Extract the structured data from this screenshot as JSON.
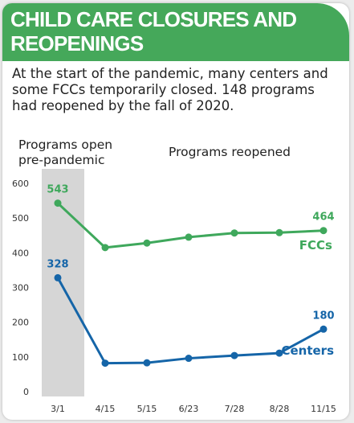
{
  "title": "CHILD CARE CLOSURES AND REOPENINGS",
  "subtitle": "At the start of the pandemic, many centers and some FCCs temporarily closed. 148 programs had reopened by the fall of 2020.",
  "colors": {
    "header": "#45a85a",
    "fcc": "#3fa85c",
    "centers": "#1565a8",
    "shade": "#d6d6d6"
  },
  "chart_data": {
    "type": "line",
    "categories": [
      "3/1",
      "4/15",
      "5/15",
      "6/23",
      "7/28",
      "8/28",
      "11/15"
    ],
    "ylim": [
      0,
      600
    ],
    "yticks": [
      0,
      100,
      200,
      300,
      400,
      500,
      600
    ],
    "section_labels": {
      "pre": [
        "Programs open",
        "pre-pandemic"
      ],
      "post": "Programs reopened"
    },
    "series": [
      {
        "name": "FCCs",
        "key": "fcc",
        "values": [
          543,
          415,
          428,
          445,
          457,
          458,
          464
        ],
        "labels": {
          "0": "543",
          "6": "464"
        }
      },
      {
        "name": "Centers",
        "key": "centers",
        "values": [
          328,
          82,
          83,
          96,
          104,
          111,
          180
        ],
        "labels": {
          "0": "328",
          "6": "180"
        }
      }
    ],
    "grid": false,
    "legend": "inline-right"
  }
}
